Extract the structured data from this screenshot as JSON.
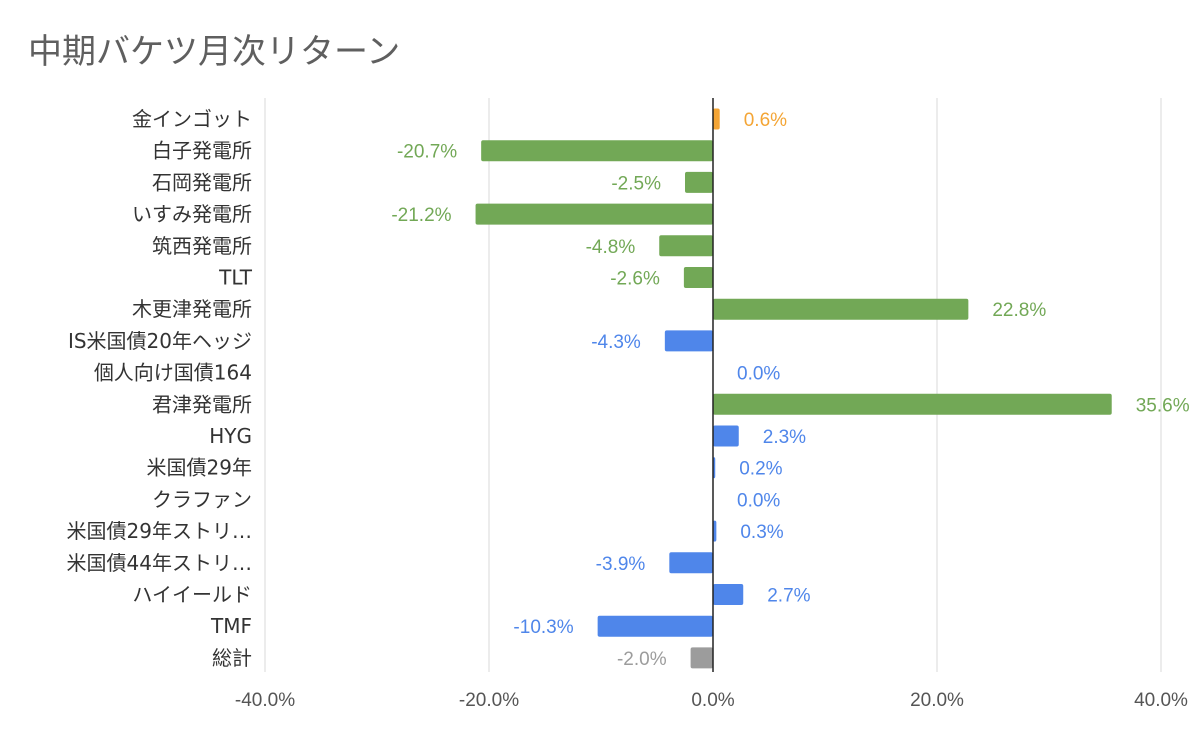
{
  "chart_data": {
    "type": "bar",
    "orientation": "horizontal",
    "title": "中期バケツ月次リターン",
    "xlabel": "",
    "ylabel": "",
    "xlim": [
      -40,
      40
    ],
    "xticks": [
      -40,
      -20,
      0,
      20,
      40
    ],
    "xtick_labels": [
      "-40.0%",
      "-20.0%",
      "0.0%",
      "20.0%",
      "40.0%"
    ],
    "grid": "vertical",
    "legend": "none",
    "colors": {
      "orange": "#f4a535",
      "green": "#72a856",
      "blue": "#4f86ea",
      "gray": "#9c9c9c",
      "grid": "#d9d9d9",
      "axis": "#222222"
    },
    "categories": [
      "金インゴット",
      "白子発電所",
      "石岡発電所",
      "いすみ発電所",
      "筑西発電所",
      "TLT",
      "木更津発電所",
      "IS米国債20年ヘッジ",
      "個人向け国債164",
      "君津発電所",
      "HYG",
      "米国債29年",
      "クラファン",
      "米国債29年ストリ…",
      "米国債44年ストリ…",
      "ハイイールド",
      "TMF",
      "総計"
    ],
    "values": [
      0.6,
      -20.7,
      -2.5,
      -21.2,
      -4.8,
      -2.6,
      22.8,
      -4.3,
      0.0,
      35.6,
      2.3,
      0.2,
      0.0,
      0.3,
      -3.9,
      2.7,
      -10.3,
      -2.0
    ],
    "value_labels": [
      "0.6%",
      "-20.7%",
      "-2.5%",
      "-21.2%",
      "-4.8%",
      "-2.6%",
      "22.8%",
      "-4.3%",
      "0.0%",
      "35.6%",
      "2.3%",
      "0.2%",
      "0.0%",
      "0.3%",
      "-3.9%",
      "2.7%",
      "-10.3%",
      "-2.0%"
    ],
    "bar_colors": [
      "orange",
      "green",
      "green",
      "green",
      "green",
      "green",
      "green",
      "blue",
      "blue",
      "green",
      "blue",
      "blue",
      "blue",
      "blue",
      "blue",
      "blue",
      "blue",
      "gray"
    ]
  }
}
